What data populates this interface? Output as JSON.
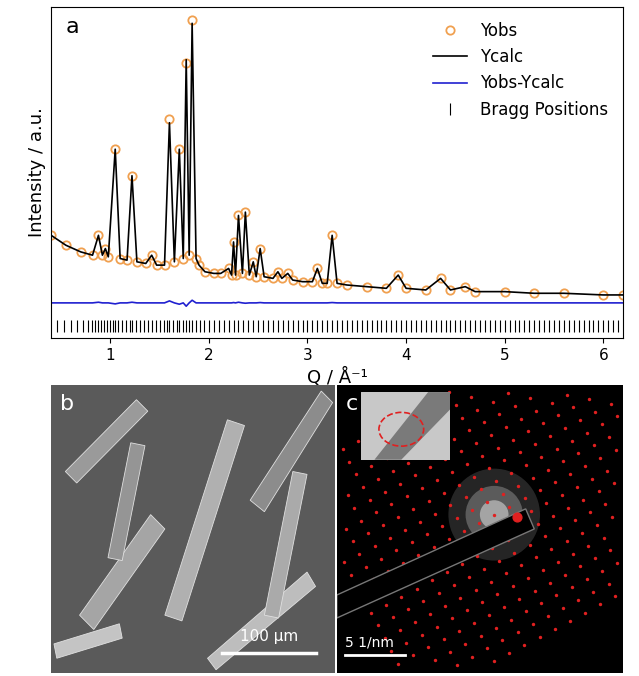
{
  "chart_data": {
    "type": "line",
    "title": "a",
    "x_label": "Q / Å⁻¹",
    "y_label": "Intensity / a.u.",
    "xlim": [
      0.4,
      6.2
    ],
    "xticks": [
      1,
      2,
      3,
      4,
      5,
      6
    ],
    "ylim": [
      0,
      100
    ],
    "tick_labels": "x",
    "legend": "upper right",
    "series": [
      {
        "name": "Yobs",
        "type": "scatter",
        "marker": "o",
        "color": "#f0a050",
        "x": [
          0.4,
          0.55,
          0.7,
          0.82,
          0.88,
          0.92,
          0.95,
          0.98,
          1.05,
          1.1,
          1.17,
          1.22,
          1.27,
          1.36,
          1.42,
          1.47,
          1.55,
          1.6,
          1.65,
          1.7,
          1.74,
          1.77,
          1.8,
          1.83,
          1.87,
          1.9,
          1.96,
          2.05,
          2.12,
          2.2,
          2.23,
          2.25,
          2.27,
          2.3,
          2.34,
          2.37,
          2.41,
          2.45,
          2.48,
          2.52,
          2.56,
          2.65,
          2.7,
          2.74,
          2.8,
          2.85,
          2.95,
          3.05,
          3.1,
          3.15,
          3.2,
          3.25,
          3.3,
          3.4,
          3.6,
          3.8,
          3.92,
          4.0,
          4.2,
          4.35,
          4.45,
          4.6,
          4.7,
          5.0,
          5.3,
          5.6,
          6.0,
          6.2
        ],
        "values": [
          31,
          28,
          26,
          25,
          31,
          25,
          27,
          24.5,
          57,
          24,
          23.5,
          49,
          23,
          22.5,
          25,
          22,
          22,
          66,
          23,
          57,
          24,
          83,
          25,
          96,
          24,
          22,
          20,
          19.5,
          19.5,
          21,
          19,
          29,
          19,
          37,
          19.5,
          38,
          19,
          23,
          18.5,
          27,
          18.5,
          18,
          20,
          18,
          19.5,
          17.5,
          17,
          17,
          21,
          16.5,
          16.5,
          31,
          16.5,
          16,
          15.5,
          15,
          19,
          15,
          14.5,
          18,
          14.5,
          15.5,
          14,
          14,
          13.5,
          13.5,
          13,
          13
        ]
      },
      {
        "name": "Ycalc",
        "type": "line",
        "line_style": "solid",
        "color": "#000000",
        "x": [
          0.4,
          0.55,
          0.7,
          0.82,
          0.88,
          0.92,
          0.95,
          0.98,
          1.05,
          1.1,
          1.17,
          1.22,
          1.27,
          1.36,
          1.42,
          1.47,
          1.55,
          1.6,
          1.65,
          1.7,
          1.74,
          1.77,
          1.8,
          1.83,
          1.87,
          1.9,
          1.96,
          2.05,
          2.12,
          2.2,
          2.23,
          2.25,
          2.27,
          2.3,
          2.34,
          2.37,
          2.41,
          2.45,
          2.48,
          2.52,
          2.56,
          2.65,
          2.7,
          2.74,
          2.8,
          2.85,
          2.95,
          3.05,
          3.1,
          3.15,
          3.2,
          3.25,
          3.3,
          3.4,
          3.6,
          3.8,
          3.92,
          4.0,
          4.2,
          4.35,
          4.45,
          4.6,
          4.7,
          5.0,
          5.3,
          5.6,
          6.0,
          6.2
        ],
        "values": [
          31,
          28,
          26,
          25,
          31,
          25,
          27,
          24.5,
          57,
          24,
          23.5,
          49,
          23,
          22.5,
          25,
          22,
          22,
          65,
          23,
          57,
          24,
          84,
          25,
          95,
          24,
          22,
          20,
          19.5,
          19.5,
          21,
          19,
          29,
          19,
          37,
          19.5,
          38,
          19,
          23,
          18.5,
          27,
          18.5,
          18,
          20,
          18,
          19.5,
          17.5,
          17,
          17,
          21,
          16.5,
          16.5,
          31,
          16.5,
          16,
          15.5,
          15,
          19,
          15,
          14.5,
          18,
          14.5,
          15.5,
          14,
          14,
          13.5,
          13.5,
          13,
          13
        ]
      },
      {
        "name": "Yobs-Ycalc",
        "type": "line",
        "line_style": "solid",
        "color": "#2020d0",
        "x": [
          0.4,
          0.55,
          0.7,
          0.82,
          0.88,
          0.92,
          0.95,
          0.98,
          1.05,
          1.1,
          1.17,
          1.22,
          1.27,
          1.36,
          1.42,
          1.47,
          1.55,
          1.6,
          1.65,
          1.7,
          1.74,
          1.77,
          1.8,
          1.83,
          1.87,
          1.9,
          1.96,
          2.05,
          2.12,
          2.2,
          2.23,
          2.25,
          2.27,
          2.3,
          2.34,
          2.37,
          2.41,
          2.45,
          2.48,
          2.52,
          2.56,
          2.65,
          2.7,
          2.74,
          2.8,
          2.85,
          2.95,
          3.05,
          3.1,
          3.15,
          3.2,
          3.25,
          3.3,
          3.4,
          3.6,
          3.8,
          3.92,
          4.0,
          4.2,
          4.35,
          4.45,
          4.6,
          4.7,
          5.0,
          5.3,
          5.6,
          6.0,
          6.2
        ],
        "values": [
          10.6,
          10.6,
          10.6,
          10.6,
          10.8,
          10.6,
          10.6,
          10.6,
          10.3,
          10.6,
          10.6,
          10.8,
          10.6,
          10.6,
          10.6,
          10.6,
          10.6,
          11.2,
          10.6,
          10.2,
          10.6,
          9.6,
          10.6,
          11.4,
          10.6,
          10.6,
          10.6,
          10.6,
          10.6,
          10.6,
          10.6,
          10.7,
          10.6,
          10.8,
          10.6,
          10.5,
          10.6,
          10.6,
          10.6,
          10.7,
          10.6,
          10.6,
          10.6,
          10.6,
          10.6,
          10.6,
          10.6,
          10.6,
          10.6,
          10.6,
          10.6,
          10.7,
          10.6,
          10.6,
          10.6,
          10.6,
          10.6,
          10.6,
          10.6,
          10.6,
          10.6,
          10.6,
          10.6,
          10.6,
          10.6,
          10.6,
          10.6,
          10.6
        ]
      },
      {
        "name": "Bragg Positions",
        "type": "scatter",
        "marker": "|",
        "color": "#000000",
        "x": [
          0.46,
          0.53,
          0.6,
          0.66,
          0.72,
          0.77,
          0.81,
          0.85,
          0.88,
          0.91,
          0.94,
          0.97,
          1.0,
          1.03,
          1.05,
          1.08,
          1.12,
          1.16,
          1.2,
          1.22,
          1.26,
          1.3,
          1.34,
          1.38,
          1.42,
          1.46,
          1.5,
          1.54,
          1.58,
          1.6,
          1.64,
          1.68,
          1.7,
          1.74,
          1.77,
          1.8,
          1.83,
          1.87,
          1.91,
          1.95,
          2.0,
          2.05,
          2.1,
          2.15,
          2.2,
          2.25,
          2.3,
          2.35,
          2.4,
          2.45,
          2.5,
          2.55,
          2.6,
          2.65,
          2.7,
          2.75,
          2.8,
          2.85,
          2.9,
          2.95,
          3.0,
          3.05,
          3.1,
          3.15,
          3.2,
          3.25,
          3.3,
          3.35,
          3.4,
          3.45,
          3.5,
          3.55,
          3.6,
          3.65,
          3.7,
          3.75,
          3.8,
          3.85,
          3.9,
          3.95,
          4.0,
          4.05,
          4.1,
          4.15,
          4.2,
          4.25,
          4.3,
          4.35,
          4.4,
          4.45,
          4.5,
          4.55,
          4.6,
          4.65,
          4.7,
          4.75,
          4.8,
          4.85,
          4.9,
          4.95,
          5.0,
          5.05,
          5.1,
          5.15,
          5.2,
          5.25,
          5.3,
          5.35,
          5.4,
          5.45,
          5.5,
          5.55,
          5.6,
          5.65,
          5.7,
          5.75,
          5.8,
          5.85,
          5.9,
          5.95,
          6.0,
          6.05,
          6.1,
          6.15
        ],
        "values": [
          3.5,
          3.5,
          3.5,
          3.5,
          3.5,
          3.5,
          3.5,
          3.5,
          3.5,
          3.5,
          3.5,
          3.5,
          3.5,
          3.5,
          3.5,
          3.5,
          3.5,
          3.5,
          3.5,
          3.5,
          3.5,
          3.5,
          3.5,
          3.5,
          3.5,
          3.5,
          3.5,
          3.5,
          3.5,
          3.5,
          3.5,
          3.5,
          3.5,
          3.5,
          3.5,
          3.5,
          3.5,
          3.5,
          3.5,
          3.5,
          3.5,
          3.5,
          3.5,
          3.5,
          3.5,
          3.5,
          3.5,
          3.5,
          3.5,
          3.5,
          3.5,
          3.5,
          3.5,
          3.5,
          3.5,
          3.5,
          3.5,
          3.5,
          3.5,
          3.5,
          3.5,
          3.5,
          3.5,
          3.5,
          3.5,
          3.5,
          3.5,
          3.5,
          3.5,
          3.5,
          3.5,
          3.5,
          3.5,
          3.5,
          3.5,
          3.5,
          3.5,
          3.5,
          3.5,
          3.5,
          3.5,
          3.5,
          3.5,
          3.5,
          3.5,
          3.5,
          3.5,
          3.5,
          3.5,
          3.5,
          3.5,
          3.5,
          3.5,
          3.5,
          3.5,
          3.5,
          3.5,
          3.5,
          3.5,
          3.5,
          3.5,
          3.5,
          3.5,
          3.5,
          3.5,
          3.5,
          3.5,
          3.5,
          3.5,
          3.5,
          3.5,
          3.5,
          3.5,
          3.5,
          3.5,
          3.5,
          3.5,
          3.5,
          3.5,
          3.5,
          3.5,
          3.5,
          3.5,
          3.5
        ]
      }
    ]
  },
  "images": [
    {
      "label": "b",
      "scale_bar": "100 µm"
    },
    {
      "label": "c",
      "scale_bar": "5 1/nm"
    }
  ]
}
